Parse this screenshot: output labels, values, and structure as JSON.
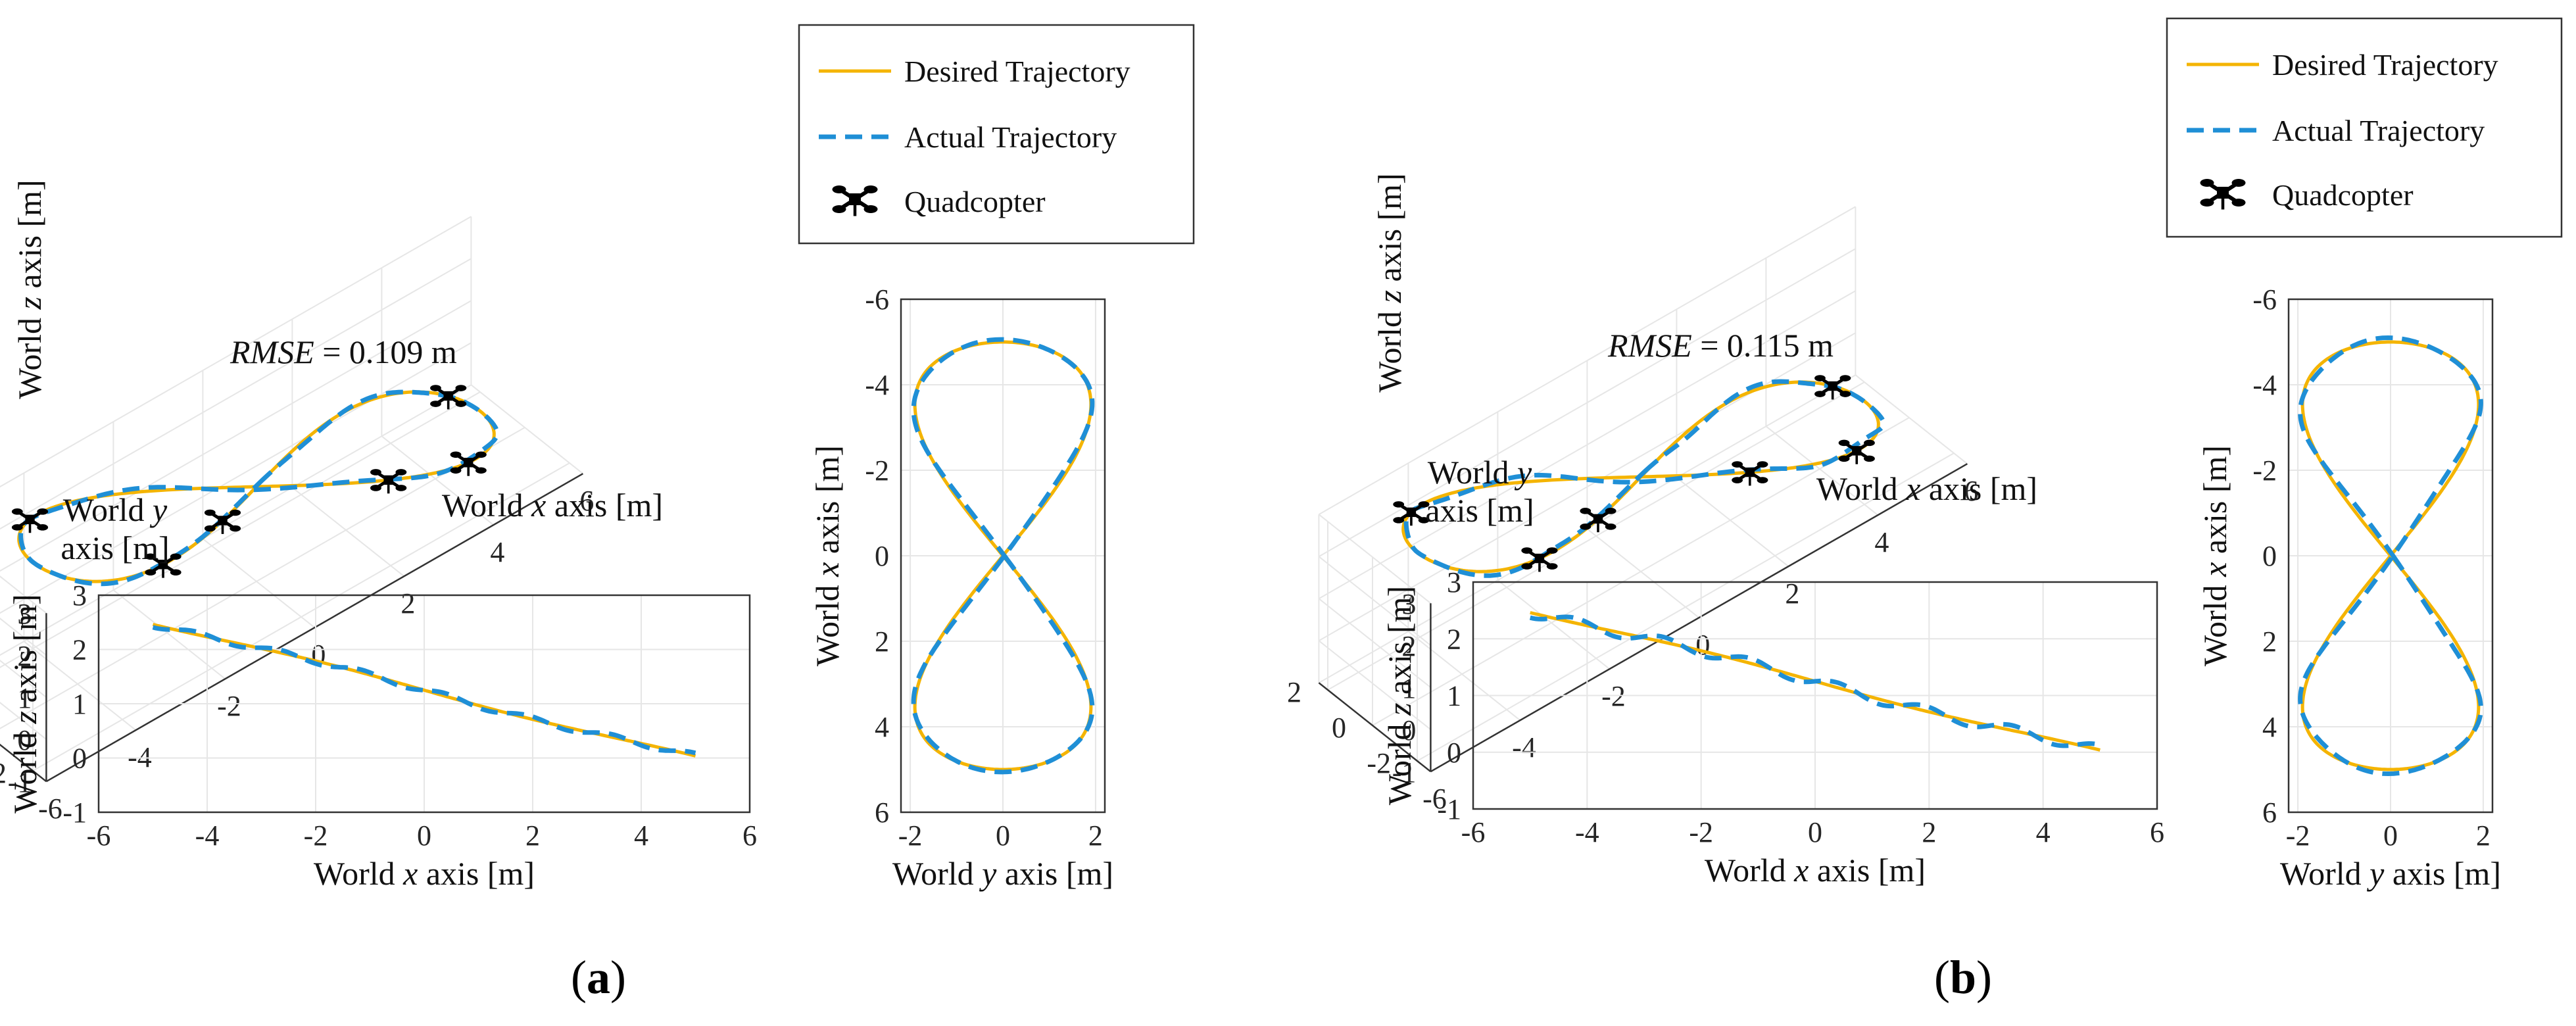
{
  "legend": {
    "desired": "Desired Trajectory",
    "actual": "Actual Trajectory",
    "quad": "Quadcopter"
  },
  "colors": {
    "desired": "#f4b400",
    "actual": "#1f8fd6",
    "quad": "#000000"
  },
  "panels": [
    {
      "label": "a",
      "rmse_name": "RMSE",
      "rmse_value": " = 0.109 m",
      "labels_3d": {
        "x": [
          "World ",
          "x",
          " axis [m]"
        ],
        "y1": [
          "World ",
          "y"
        ],
        "y2": "axis [m]",
        "z": [
          "World ",
          "z",
          " axis [m]"
        ]
      },
      "labels_xz": {
        "x": [
          "World ",
          "x",
          " axis [m]"
        ],
        "y": [
          "World ",
          "z",
          " axis [m]"
        ]
      },
      "labels_yx": {
        "x": [
          "World ",
          "y",
          " axis [m]"
        ],
        "y": [
          "World ",
          "x",
          " axis [m]"
        ]
      },
      "deviation": 0.06
    },
    {
      "label": "b",
      "rmse_name": "RMSE",
      "rmse_value": " = 0.115 m",
      "labels_3d": {
        "x": [
          "World ",
          "x",
          " axis [m]"
        ],
        "y1": [
          "World ",
          "y"
        ],
        "y2": "axis [m]",
        "z": [
          "World ",
          "z",
          " axis [m]"
        ]
      },
      "labels_xz": {
        "x": [
          "World ",
          "x",
          " axis [m]"
        ],
        "y": [
          "World ",
          "z",
          " axis [m]"
        ]
      },
      "labels_yx": {
        "x": [
          "World ",
          "y",
          " axis [m]"
        ],
        "y": [
          "World ",
          "x",
          " axis [m]"
        ]
      },
      "deviation": 0.1
    }
  ],
  "chart_data": [
    {
      "panel": "a",
      "plot": "3d",
      "type": "line",
      "x_ticks": [
        -6,
        -4,
        -2,
        0,
        2,
        4,
        6
      ],
      "y_ticks": [
        -2,
        0,
        2
      ],
      "z_ticks": [
        -1,
        0,
        1,
        2,
        3
      ],
      "trajectory": "figure-eight: x = 5·sin(t), y = 1.9·sin(2t), z = 1.25 − 0.25·x",
      "quadcopter_x": [
        -4.2,
        -1.2,
        2.2,
        4.8,
        3.8,
        -3.0
      ]
    },
    {
      "panel": "a",
      "plot": "xz",
      "type": "line",
      "x_ticks": [
        -6,
        -4,
        -2,
        0,
        2,
        4,
        6
      ],
      "xlim": [
        -6,
        6
      ],
      "y_ticks": [
        -1,
        0,
        1,
        2,
        3
      ],
      "ylim": [
        -1,
        3
      ],
      "x": [
        -5,
        -4,
        -3,
        -2,
        -1,
        0,
        1,
        2,
        3,
        4,
        5
      ],
      "desired_z": [
        2.5,
        2.3,
        2.1,
        1.85,
        1.58,
        1.3,
        1.02,
        0.75,
        0.5,
        0.28,
        0.0
      ],
      "actual_z": [
        2.5,
        2.32,
        2.1,
        1.83,
        1.6,
        1.28,
        1.0,
        0.76,
        0.48,
        0.3,
        0.0
      ]
    },
    {
      "panel": "a",
      "plot": "yx",
      "type": "line",
      "x_ticks": [
        -2,
        0,
        2
      ],
      "xlim": [
        -2.2,
        2.2
      ],
      "y_ticks": [
        -6,
        -4,
        -2,
        0,
        2,
        4,
        6
      ],
      "ylim": [
        6,
        -6
      ],
      "trajectory": "figure-eight: x = 5·sin(t), y = 1.9·sin(2t)"
    },
    {
      "panel": "b",
      "plot": "3d",
      "type": "line",
      "x_ticks": [
        -6,
        -4,
        -2,
        0,
        2,
        4,
        6
      ],
      "y_ticks": [
        -2,
        0,
        2
      ],
      "z_ticks": [
        -1,
        0,
        1,
        2,
        3
      ],
      "trajectory": "figure-eight: x = 5·sin(t), y = 1.9·sin(2t), z = 1.25 − 0.25·x",
      "quadcopter_x": [
        -4.3,
        -1.5,
        1.8,
        4.8,
        3.9,
        -3.2
      ]
    },
    {
      "panel": "b",
      "plot": "xz",
      "type": "line",
      "x_ticks": [
        -6,
        -4,
        -2,
        0,
        2,
        4,
        6
      ],
      "xlim": [
        -6,
        6
      ],
      "y_ticks": [
        -1,
        0,
        1,
        2,
        3
      ],
      "ylim": [
        -1,
        3
      ],
      "x": [
        -5,
        -4,
        -3,
        -2,
        -1,
        0,
        1,
        2,
        3,
        4,
        5
      ],
      "desired_z": [
        2.5,
        2.3,
        2.1,
        1.85,
        1.58,
        1.3,
        1.02,
        0.75,
        0.5,
        0.28,
        0.0
      ],
      "actual_z": [
        2.55,
        2.4,
        2.18,
        1.82,
        1.65,
        1.35,
        1.08,
        0.7,
        0.45,
        0.22,
        0.05
      ]
    },
    {
      "panel": "b",
      "plot": "yx",
      "type": "line",
      "x_ticks": [
        -2,
        0,
        2
      ],
      "xlim": [
        -2.2,
        2.2
      ],
      "y_ticks": [
        -6,
        -4,
        -2,
        0,
        2,
        4,
        6
      ],
      "ylim": [
        6,
        -6
      ],
      "trajectory": "figure-eight: x = 5·sin(t), y = 1.9·sin(2t)"
    }
  ]
}
